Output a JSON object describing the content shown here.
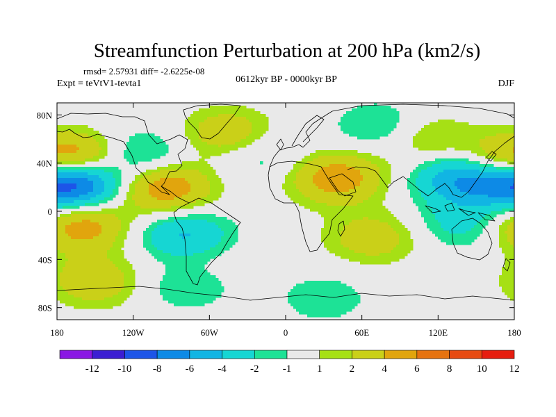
{
  "chart_data": {
    "type": "heatmap",
    "title": "Streamfunction Perturbation at 200 hPa (km2/s)",
    "stats_line": "rmsd= 2.57931 diff= -2.6225e-08",
    "left_label": "Expt = teVtV1-tevta1",
    "center_label": "0612kyr BP - 0000kyr BP",
    "right_label": "DJF",
    "xlim": [
      -180,
      180
    ],
    "ylim": [
      -90,
      90
    ],
    "x_ticks": [
      {
        "value": -180,
        "label": "180"
      },
      {
        "value": -120,
        "label": "120W"
      },
      {
        "value": -60,
        "label": "60W"
      },
      {
        "value": 0,
        "label": "0"
      },
      {
        "value": 60,
        "label": "60E"
      },
      {
        "value": 120,
        "label": "120E"
      },
      {
        "value": 180,
        "label": "180"
      }
    ],
    "y_ticks": [
      {
        "value": 80,
        "label": "80N"
      },
      {
        "value": 40,
        "label": "40N"
      },
      {
        "value": 0,
        "label": "0"
      },
      {
        "value": -40,
        "label": "40S"
      },
      {
        "value": -80,
        "label": "80S"
      }
    ],
    "levels": [
      -12,
      -10,
      -8,
      -6,
      -4,
      -2,
      -1,
      1,
      2,
      4,
      6,
      8,
      10,
      12
    ],
    "colorbar_labels": [
      "-12",
      "-10",
      "-8",
      "-6",
      "-4",
      "-2",
      "-1",
      "1",
      "2",
      "4",
      "6",
      "8",
      "10",
      "12"
    ],
    "colors": [
      "#8a17e3",
      "#3c1ed2",
      "#1d55e8",
      "#0d8ae6",
      "#11b5e3",
      "#16d6d3",
      "#1de296",
      "#e9e9e9",
      "#a6e015",
      "#cad018",
      "#e1a50d",
      "#e67310",
      "#e74a12",
      "#e61d0f"
    ],
    "anomaly_centers": [
      {
        "lon": -168,
        "lat": 24,
        "value": -11.5
      },
      {
        "lon": -162,
        "lat": 43,
        "value": 6.5
      },
      {
        "lon": -162,
        "lat": -12,
        "value": 5.5
      },
      {
        "lon": -150,
        "lat": -58,
        "value": 3.5
      },
      {
        "lon": -115,
        "lat": 46,
        "value": -3.5
      },
      {
        "lon": -95,
        "lat": 20,
        "value": 6.0
      },
      {
        "lon": -80,
        "lat": -20,
        "value": -4.5
      },
      {
        "lon": -72,
        "lat": -44,
        "value": 1.3
      },
      {
        "lon": -78,
        "lat": -60,
        "value": -2.5
      },
      {
        "lon": -45,
        "lat": 64,
        "value": 3.8
      },
      {
        "lon": -20,
        "lat": 47,
        "value": -2.2
      },
      {
        "lon": 40,
        "lat": 28,
        "value": 5.5
      },
      {
        "lon": 75,
        "lat": 70,
        "value": -2.5
      },
      {
        "lon": 68,
        "lat": -22,
        "value": 3.2
      },
      {
        "lon": 140,
        "lat": 28,
        "value": -7.0
      },
      {
        "lon": 112,
        "lat": 60,
        "value": 2.6
      },
      {
        "lon": 165,
        "lat": 38,
        "value": 4.2
      },
      {
        "lon": 140,
        "lat": -10,
        "value": -2.8
      },
      {
        "lon": 30,
        "lat": -72,
        "value": -1.8
      }
    ]
  }
}
